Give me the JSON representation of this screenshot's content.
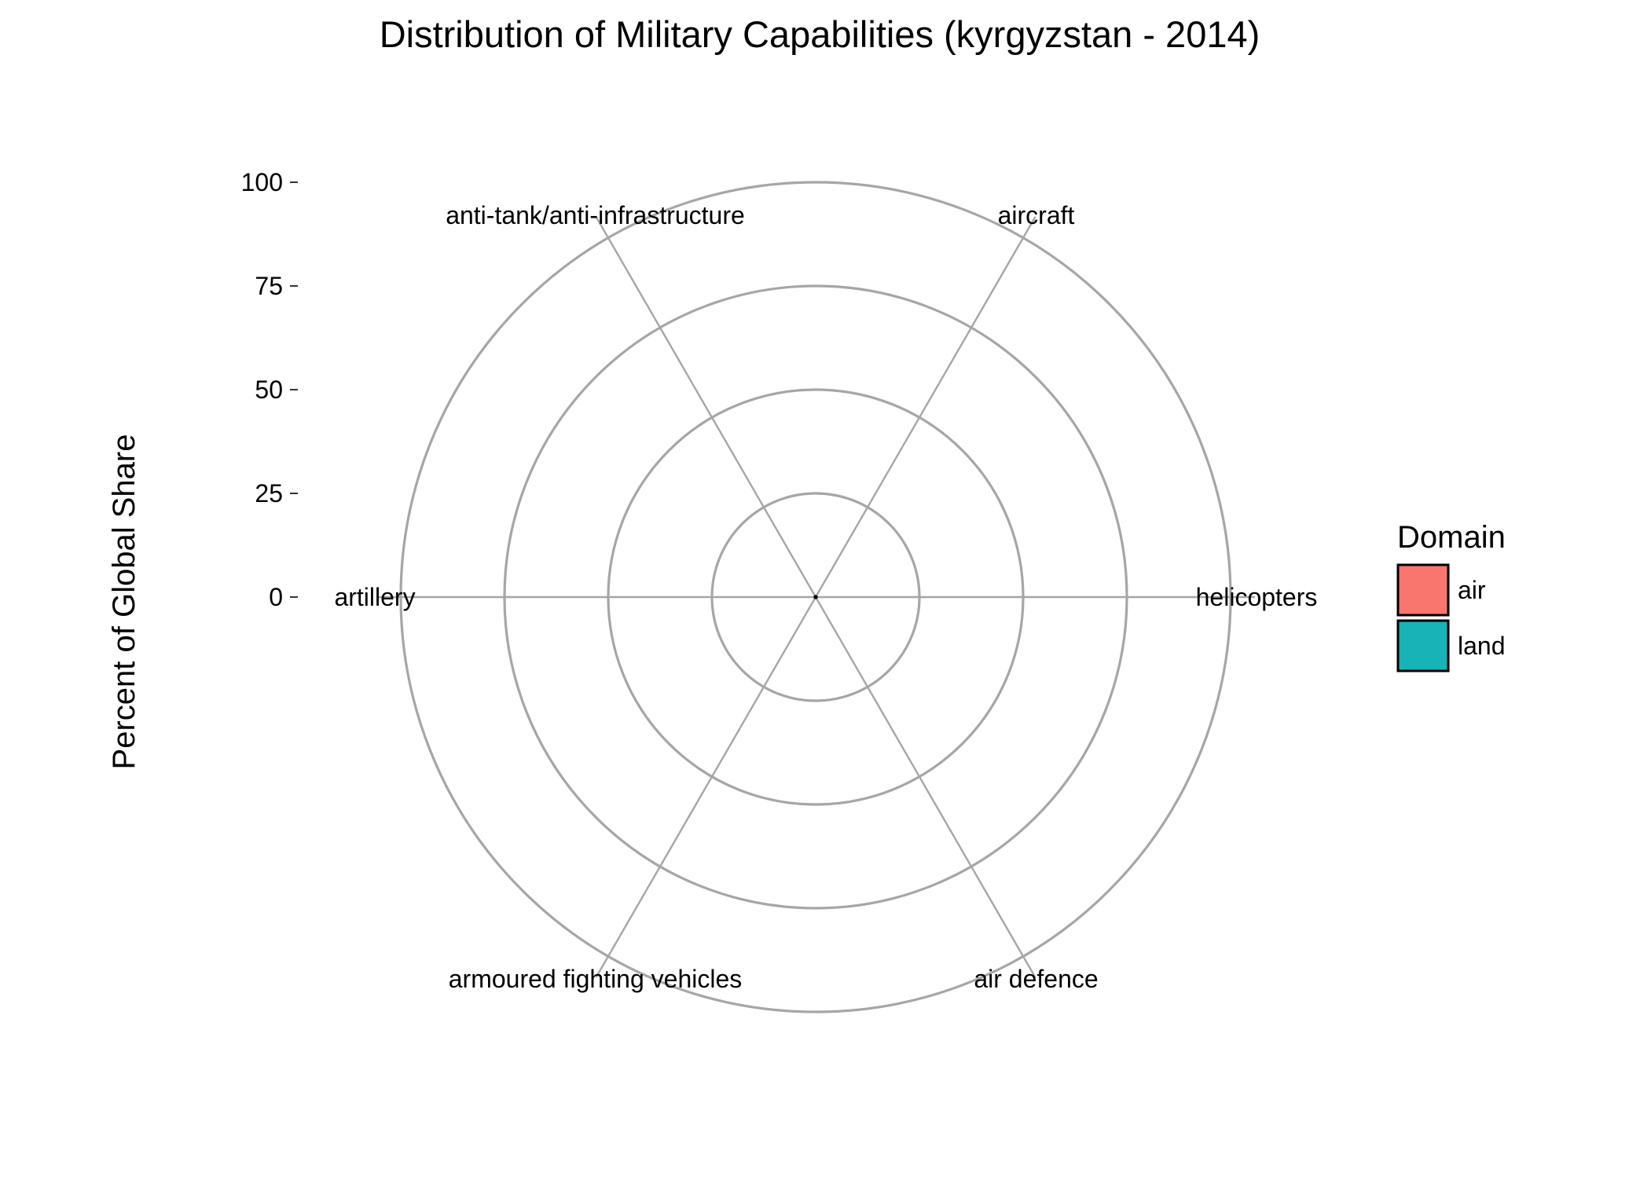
{
  "chart_data": {
    "type": "radar",
    "title": "Distribution of Military Capabilities (kyrgyzstan - 2014)",
    "ylabel": "Percent of Global Share",
    "ylim": [
      0,
      100
    ],
    "ticks": [
      0,
      25,
      50,
      75,
      100
    ],
    "tick_labels": [
      "0",
      "25",
      "50",
      "75",
      "100"
    ],
    "categories": [
      "helicopters",
      "aircraft",
      "anti-tank/anti-infrastructure",
      "artillery",
      "armoured fighting vehicles",
      "air defence"
    ],
    "series": [
      {
        "name": "air",
        "color": "#F8766D",
        "values": [
          0,
          0,
          0,
          0,
          0,
          0
        ]
      },
      {
        "name": "land",
        "color": "#00BFC4",
        "values": [
          0,
          0,
          0,
          0,
          0,
          0
        ]
      }
    ],
    "grid": true,
    "legend": {
      "title": "Domain",
      "position": "right",
      "entries": [
        {
          "label": "air",
          "color": "#F8766D"
        },
        {
          "label": "land",
          "color": "#17B3B7"
        }
      ]
    }
  }
}
